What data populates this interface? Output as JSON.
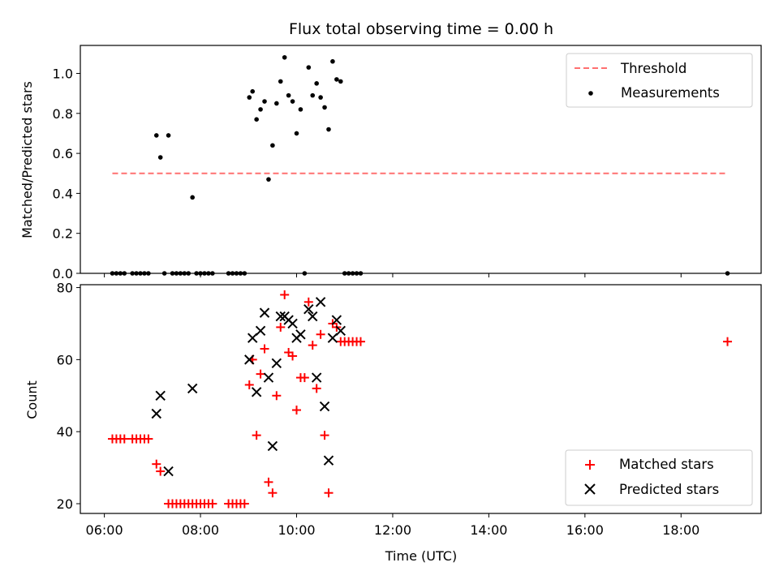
{
  "figure": {
    "title": "Flux total observing time = 0.00 h"
  },
  "colors": {
    "threshold": "#ff7070",
    "measurement": "#000000",
    "matched": "#ff0000",
    "predicted": "#000000"
  },
  "chart_data": [
    {
      "type": "scatter",
      "title": "Flux total observing time = 0.00 h",
      "xlabel": "",
      "ylabel": "Matched/Predicted stars",
      "xlim": [
        "05:30",
        "19:40"
      ],
      "ylim": [
        0,
        1.14
      ],
      "yticks": [
        0.0,
        0.2,
        0.4,
        0.6,
        0.8,
        1.0
      ],
      "ytick_labels": [
        "0.0",
        "0.2",
        "0.4",
        "0.6",
        "0.8",
        "1.0"
      ],
      "legend": {
        "position": "top-right",
        "entries": [
          "Threshold",
          "Measurements"
        ]
      },
      "threshold": {
        "name": "Threshold",
        "y": 0.5,
        "x": [
          "06:10",
          "18:55"
        ],
        "style": "dashed"
      },
      "series": [
        {
          "name": "Measurements",
          "marker": "dot",
          "points": [
            [
              "06:10",
              0
            ],
            [
              "06:15",
              0
            ],
            [
              "06:20",
              0
            ],
            [
              "06:25",
              0
            ],
            [
              "06:35",
              0
            ],
            [
              "06:40",
              0
            ],
            [
              "06:45",
              0
            ],
            [
              "06:50",
              0
            ],
            [
              "06:55",
              0
            ],
            [
              "07:05",
              0.69
            ],
            [
              "07:10",
              0.58
            ],
            [
              "07:15",
              0
            ],
            [
              "07:20",
              0.69
            ],
            [
              "07:25",
              0
            ],
            [
              "07:30",
              0
            ],
            [
              "07:35",
              0
            ],
            [
              "07:40",
              0
            ],
            [
              "07:45",
              0
            ],
            [
              "07:50",
              0.38
            ],
            [
              "07:55",
              0
            ],
            [
              "08:00",
              0
            ],
            [
              "08:05",
              0
            ],
            [
              "08:10",
              0
            ],
            [
              "08:15",
              0
            ],
            [
              "08:35",
              0
            ],
            [
              "08:40",
              0
            ],
            [
              "08:45",
              0
            ],
            [
              "08:50",
              0
            ],
            [
              "08:55",
              0
            ],
            [
              "09:01",
              0.88
            ],
            [
              "09:05",
              0.91
            ],
            [
              "09:10",
              0.77
            ],
            [
              "09:15",
              0.82
            ],
            [
              "09:20",
              0.86
            ],
            [
              "09:25",
              0.47
            ],
            [
              "09:30",
              0.64
            ],
            [
              "09:35",
              0.85
            ],
            [
              "09:40",
              0.96
            ],
            [
              "09:45",
              1.08
            ],
            [
              "09:50",
              0.89
            ],
            [
              "09:55",
              0.86
            ],
            [
              "10:00",
              0.7
            ],
            [
              "10:05",
              0.82
            ],
            [
              "10:10",
              0
            ],
            [
              "10:15",
              1.03
            ],
            [
              "10:20",
              0.89
            ],
            [
              "10:25",
              0.95
            ],
            [
              "10:30",
              0.88
            ],
            [
              "10:35",
              0.83
            ],
            [
              "10:40",
              0.72
            ],
            [
              "10:45",
              1.06
            ],
            [
              "10:50",
              0.97
            ],
            [
              "10:55",
              0.96
            ],
            [
              "11:00",
              0
            ],
            [
              "11:05",
              0
            ],
            [
              "11:10",
              0
            ],
            [
              "11:15",
              0
            ],
            [
              "11:20",
              0
            ],
            [
              "18:58",
              0
            ]
          ]
        }
      ]
    },
    {
      "type": "scatter",
      "title": "",
      "xlabel": "Time (UTC)",
      "ylabel": "Count",
      "xlim": [
        "05:30",
        "19:40"
      ],
      "ylim": [
        17.3,
        80.8
      ],
      "xticks": [
        "06:00",
        "08:00",
        "10:00",
        "12:00",
        "14:00",
        "16:00",
        "18:00"
      ],
      "yticks": [
        20,
        40,
        60,
        80
      ],
      "ytick_labels": [
        "20",
        "40",
        "60",
        "80"
      ],
      "legend": {
        "position": "bottom-right",
        "entries": [
          "Matched stars",
          "Predicted stars"
        ]
      },
      "series": [
        {
          "name": "Matched stars",
          "marker": "plus",
          "points": [
            [
              "06:10",
              38
            ],
            [
              "06:15",
              38
            ],
            [
              "06:20",
              38
            ],
            [
              "06:25",
              38
            ],
            [
              "06:35",
              38
            ],
            [
              "06:40",
              38
            ],
            [
              "06:45",
              38
            ],
            [
              "06:50",
              38
            ],
            [
              "06:55",
              38
            ],
            [
              "07:05",
              31
            ],
            [
              "07:10",
              29
            ],
            [
              "07:20",
              20
            ],
            [
              "07:25",
              20
            ],
            [
              "07:30",
              20
            ],
            [
              "07:35",
              20
            ],
            [
              "07:40",
              20
            ],
            [
              "07:45",
              20
            ],
            [
              "07:50",
              20
            ],
            [
              "07:55",
              20
            ],
            [
              "08:00",
              20
            ],
            [
              "08:05",
              20
            ],
            [
              "08:10",
              20
            ],
            [
              "08:15",
              20
            ],
            [
              "08:35",
              20
            ],
            [
              "08:40",
              20
            ],
            [
              "08:45",
              20
            ],
            [
              "08:50",
              20
            ],
            [
              "08:55",
              20
            ],
            [
              "09:01",
              53
            ],
            [
              "09:05",
              60
            ],
            [
              "09:10",
              39
            ],
            [
              "09:15",
              56
            ],
            [
              "09:20",
              63
            ],
            [
              "09:25",
              26
            ],
            [
              "09:30",
              23
            ],
            [
              "09:35",
              50
            ],
            [
              "09:40",
              69
            ],
            [
              "09:45",
              78
            ],
            [
              "09:50",
              62
            ],
            [
              "09:55",
              61
            ],
            [
              "10:00",
              46
            ],
            [
              "10:05",
              55
            ],
            [
              "10:10",
              55
            ],
            [
              "10:15",
              76
            ],
            [
              "10:20",
              64
            ],
            [
              "10:25",
              52
            ],
            [
              "10:30",
              67
            ],
            [
              "10:35",
              39
            ],
            [
              "10:40",
              23
            ],
            [
              "10:45",
              70
            ],
            [
              "10:50",
              69
            ],
            [
              "10:55",
              65
            ],
            [
              "11:00",
              65
            ],
            [
              "11:05",
              65
            ],
            [
              "11:10",
              65
            ],
            [
              "11:15",
              65
            ],
            [
              "11:20",
              65
            ],
            [
              "18:58",
              65
            ]
          ]
        },
        {
          "name": "Predicted stars",
          "marker": "x",
          "points": [
            [
              "07:05",
              45
            ],
            [
              "07:10",
              50
            ],
            [
              "07:20",
              29
            ],
            [
              "07:50",
              52
            ],
            [
              "09:01",
              60
            ],
            [
              "09:05",
              66
            ],
            [
              "09:10",
              51
            ],
            [
              "09:15",
              68
            ],
            [
              "09:20",
              73
            ],
            [
              "09:25",
              55
            ],
            [
              "09:30",
              36
            ],
            [
              "09:35",
              59
            ],
            [
              "09:40",
              72
            ],
            [
              "09:45",
              72
            ],
            [
              "09:50",
              71
            ],
            [
              "09:55",
              70
            ],
            [
              "10:00",
              66
            ],
            [
              "10:05",
              67
            ],
            [
              "10:15",
              74
            ],
            [
              "10:20",
              72
            ],
            [
              "10:25",
              55
            ],
            [
              "10:30",
              76
            ],
            [
              "10:35",
              47
            ],
            [
              "10:40",
              32
            ],
            [
              "10:45",
              66
            ],
            [
              "10:50",
              71
            ],
            [
              "10:55",
              68
            ]
          ]
        }
      ]
    }
  ]
}
